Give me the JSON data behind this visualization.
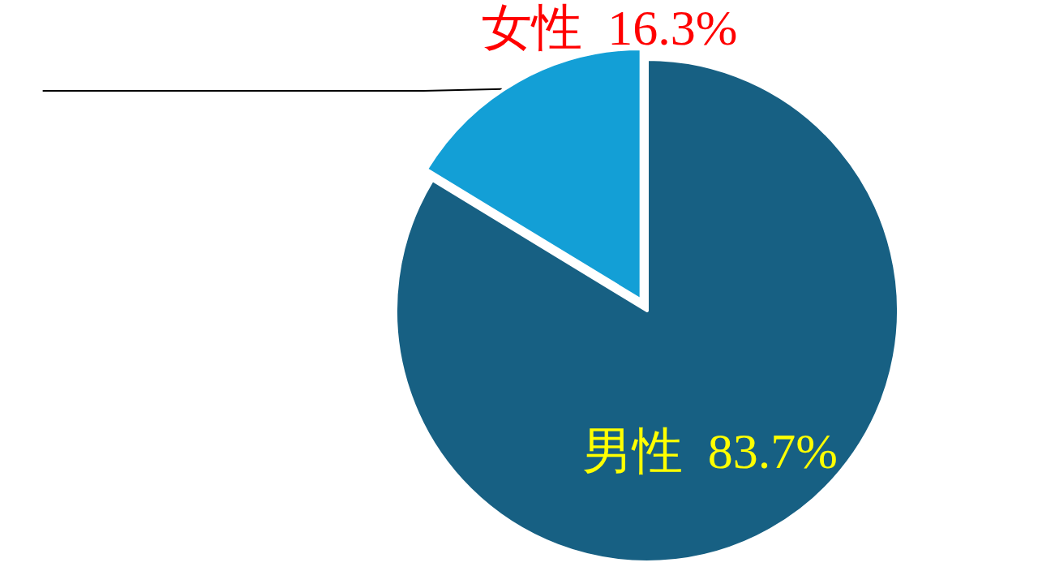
{
  "chart_data": {
    "type": "pie",
    "categories": [
      "男性",
      "女性"
    ],
    "values": [
      83.7,
      16.3
    ],
    "colors": [
      "#176083",
      "#139fd6"
    ],
    "value_labels": [
      "83.7%",
      "16.3%"
    ],
    "legend": false
  }
}
